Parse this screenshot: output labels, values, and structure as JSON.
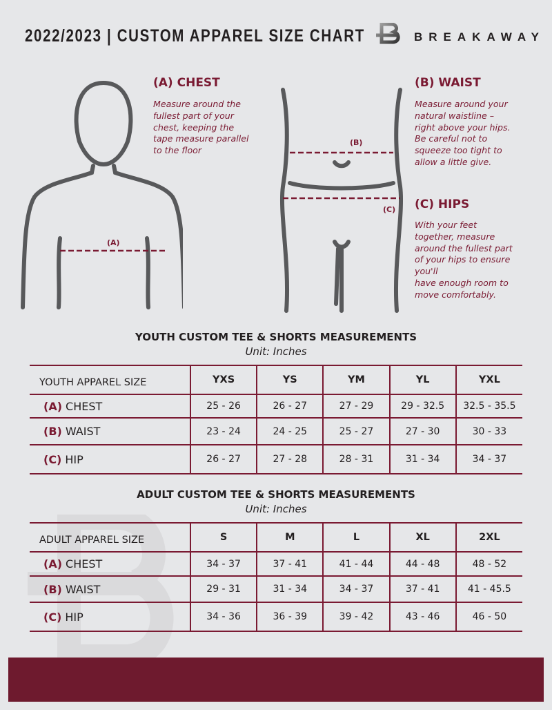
{
  "header": {
    "title": "2022/2023  |  CUSTOM APPAREL SIZE CHART",
    "brand": "BREAKAWAY"
  },
  "chest": {
    "heading": "(A) CHEST",
    "lines": [
      "Measure around the",
      "fullest part of your",
      "chest, keeping the",
      "tape measure parallel",
      "to the floor"
    ],
    "marker": "(A)"
  },
  "waist": {
    "heading": "(B) WAIST",
    "lines": [
      "Measure around your",
      "natural waistline –",
      "right above your hips.",
      "Be careful not to",
      "squeeze too tight to",
      "allow a little give."
    ],
    "marker": "(B)"
  },
  "hips": {
    "heading": "(C) HIPS",
    "lines": [
      "With your feet",
      "together, measure",
      "around the fullest part",
      "of your hips to ensure",
      "you'll",
      "have enough room to",
      "move comfortably."
    ],
    "marker": "(C)"
  },
  "youth": {
    "title": "YOUTH CUSTOM TEE & SHORTS MEASUREMENTS",
    "unit": "Unit: Inches",
    "header": "YOUTH APPAREL SIZE",
    "sizes": [
      "YXS",
      "YS",
      "YM",
      "YL",
      "YXL"
    ],
    "rows": [
      {
        "key": "(A)",
        "label": "CHEST",
        "values": [
          "25 - 26",
          "26 - 27",
          "27 - 29",
          "29 - 32.5",
          "32.5 - 35.5"
        ]
      },
      {
        "key": "(B)",
        "label": "WAIST",
        "values": [
          "23 - 24",
          "24 - 25",
          "25 - 27",
          "27 - 30",
          "30 - 33"
        ]
      },
      {
        "key": "(C)",
        "label": "HIP",
        "values": [
          "26 - 27",
          "27 - 28",
          "28 - 31",
          "31 - 34",
          "34 - 37"
        ]
      }
    ]
  },
  "adult": {
    "title": "ADULT CUSTOM TEE & SHORTS MEASUREMENTS",
    "unit": "Unit: Inches",
    "header": "ADULT APPAREL SIZE",
    "sizes": [
      "S",
      "M",
      "L",
      "XL",
      "2XL"
    ],
    "rows": [
      {
        "key": "(A)",
        "label": "CHEST",
        "values": [
          "34 - 37",
          "37 - 41",
          "41 - 44",
          "44 - 48",
          "48 - 52"
        ]
      },
      {
        "key": "(B)",
        "label": "WAIST",
        "values": [
          "29 - 31",
          "31 - 34",
          "34 - 37",
          "37 - 41",
          "41 - 45.5"
        ]
      },
      {
        "key": "(C)",
        "label": "HIP",
        "values": [
          "34 - 36",
          "36 - 39",
          "39 - 42",
          "43 - 46",
          "46 - 50"
        ]
      }
    ]
  },
  "colors": {
    "accent": "#7a1a32",
    "footer": "#6e1a2e",
    "background": "#e6e7e9"
  }
}
